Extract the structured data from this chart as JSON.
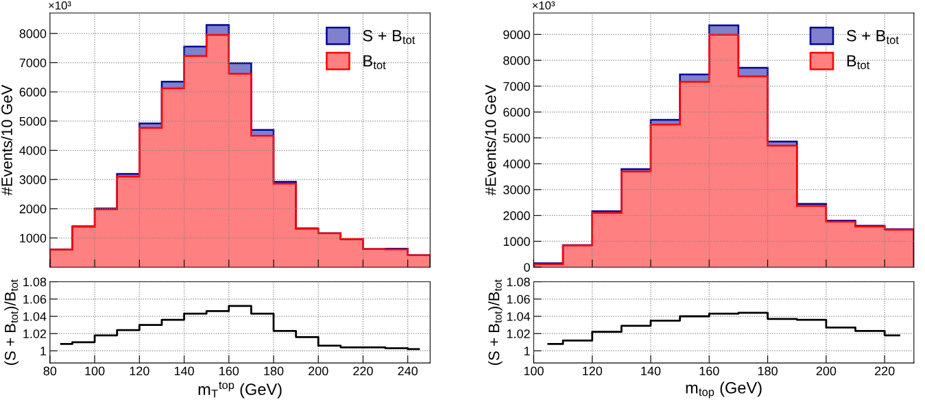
{
  "chart_data": [
    {
      "type": "histogram",
      "ylabel": "#Events/10 GeV",
      "annotations": [
        "×10³"
      ],
      "bins": [
        80,
        90,
        100,
        110,
        120,
        130,
        140,
        150,
        160,
        170,
        180,
        190,
        200,
        210,
        220,
        230,
        240,
        250
      ],
      "xlim": [
        80,
        250
      ],
      "xticks": [
        {
          "value": 80,
          "label": null
        },
        {
          "value": 100,
          "label": null
        },
        {
          "value": 120,
          "label": null
        },
        {
          "value": 140,
          "label": null
        },
        {
          "value": 160,
          "label": null
        },
        {
          "value": 180,
          "label": null
        },
        {
          "value": 200,
          "label": null
        },
        {
          "value": 220,
          "label": null
        },
        {
          "value": 240,
          "label": null
        }
      ],
      "ylim": [
        0,
        8700
      ],
      "yticks": [
        1000,
        2000,
        3000,
        4000,
        5000,
        6000,
        7000,
        8000
      ],
      "tick_labels": "y",
      "grid": true,
      "legend": "top right",
      "series": [
        {
          "name": "S + B$_{tot}$",
          "color": "#8080cc",
          "values": [
            610,
            1400,
            2010,
            3190,
            4920,
            6350,
            7550,
            8290,
            6980,
            4700,
            2920,
            1330,
            1160,
            960,
            620,
            630,
            410
          ]
        },
        {
          "name": "B$_{tot}$",
          "color": "#ff8080",
          "values": [
            600,
            1380,
            1980,
            3100,
            4770,
            6120,
            7230,
            7950,
            6620,
            4500,
            2860,
            1310,
            1160,
            960,
            620,
            610,
            410
          ]
        }
      ]
    },
    {
      "type": "step",
      "xlabel": "m$_{T}$$^{top}$ (GeV)",
      "ylabel": "(S + B$_{tot}$)/B$_{tot}$",
      "x": [
        85,
        95,
        105,
        115,
        125,
        135,
        145,
        155,
        165,
        175,
        185,
        195,
        205,
        215,
        225,
        235,
        245
      ],
      "xlim": [
        80,
        250
      ],
      "xticks": [
        80,
        100,
        120,
        140,
        160,
        180,
        200,
        220,
        240
      ],
      "ylim": [
        0.986,
        1.08
      ],
      "yticks": [
        1,
        1.02,
        1.04,
        1.06,
        1.08
      ],
      "grid": true,
      "series": [
        {
          "color": "#000000",
          "values": [
            1.008,
            1.01,
            1.018,
            1.024,
            1.03,
            1.036,
            1.043,
            1.046,
            1.052,
            1.043,
            1.023,
            1.016,
            1.006,
            1.004,
            1.004,
            1.003,
            1.002
          ]
        }
      ]
    },
    {
      "type": "histogram",
      "ylabel": "#Events/10 GeV",
      "annotations": [
        "×10³"
      ],
      "bins": [
        100,
        110,
        120,
        130,
        140,
        150,
        160,
        170,
        180,
        190,
        200,
        210,
        220,
        230
      ],
      "xlim": [
        100,
        230
      ],
      "xticks": [
        {
          "value": 100,
          "label": null
        },
        {
          "value": 120,
          "label": null
        },
        {
          "value": 140,
          "label": null
        },
        {
          "value": 160,
          "label": null
        },
        {
          "value": 180,
          "label": null
        },
        {
          "value": 200,
          "label": null
        },
        {
          "value": 220,
          "label": null
        }
      ],
      "ylim": [
        0,
        9830
      ],
      "yticks": [
        0,
        1000,
        2000,
        3000,
        4000,
        5000,
        6000,
        7000,
        8000,
        9000
      ],
      "tick_labels": "y",
      "grid": true,
      "legend": "top right",
      "series": [
        {
          "name": "S + B$_{tot}$",
          "color": "#8080cc",
          "values": [
            150,
            850,
            2160,
            3790,
            5700,
            7450,
            9350,
            7710,
            4860,
            2450,
            1800,
            1600,
            1470
          ]
        },
        {
          "name": "B$_{tot}$",
          "color": "#ff8080",
          "values": [
            110,
            840,
            2100,
            3700,
            5510,
            7170,
            8990,
            7380,
            4700,
            2370,
            1760,
            1570,
            1450
          ]
        }
      ]
    },
    {
      "type": "step",
      "xlabel": "m$_{top}$ (GeV)",
      "ylabel": "(S + B$_{tot}$)/B$_{tot}$",
      "x": [
        105,
        115,
        125,
        135,
        145,
        155,
        165,
        175,
        185,
        195,
        205,
        215,
        225
      ],
      "xlim": [
        100,
        230
      ],
      "xticks": [
        100,
        120,
        140,
        160,
        180,
        200,
        220
      ],
      "ylim": [
        0.986,
        1.08
      ],
      "yticks": [
        1,
        1.02,
        1.04,
        1.06,
        1.08
      ],
      "grid": true,
      "series": [
        {
          "color": "#000000",
          "values": [
            1.008,
            1.012,
            1.022,
            1.029,
            1.035,
            1.04,
            1.043,
            1.044,
            1.037,
            1.036,
            1.027,
            1.023,
            1.018
          ]
        }
      ]
    }
  ]
}
